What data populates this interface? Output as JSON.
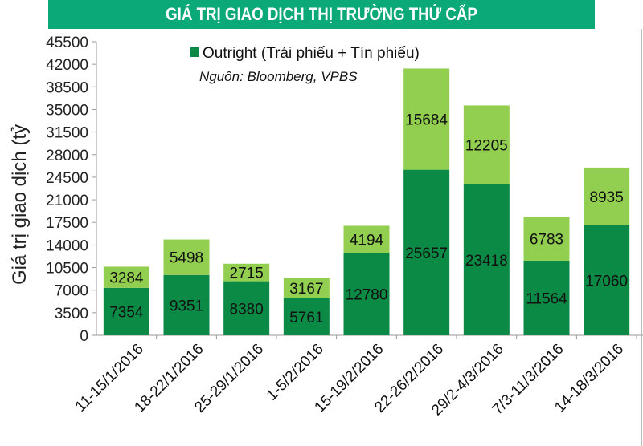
{
  "title": "GIÁ TRỊ GIAO DỊCH THỊ TRƯỜNG THỨ CẤP",
  "chart_data": {
    "type": "bar",
    "stacked": true,
    "title": "GIÁ TRỊ GIAO DỊCH THỊ TRƯỜNG THỨ CẤP",
    "ylabel": "Giá trị giao dịch (tỷ",
    "xlabel": "",
    "legend": "top-center",
    "source": "Nguồn: Bloomberg, VPBS",
    "ylim": [
      0,
      45500
    ],
    "yticks": [
      0,
      3500,
      7000,
      10500,
      14000,
      17500,
      21000,
      24500,
      28000,
      31500,
      35000,
      38500,
      42000,
      45500
    ],
    "categories": [
      "11-15/1/2016",
      "18-22/1/2016",
      "25-29/1/2016",
      "1-5/2/2016",
      "15-19/2/2016",
      "22-26/2/2016",
      "29/2-4/3/2016",
      "7/3-11/3/2016",
      "14-18/3/2016"
    ],
    "series": [
      {
        "name": "Outright (Trái phiếu + Tín phiếu)",
        "color": "#0b8a45",
        "values": [
          7354,
          9351,
          8380,
          5761,
          12780,
          25657,
          23418,
          11564,
          17060
        ]
      },
      {
        "color": "#92cf50",
        "values": [
          3284,
          5498,
          2715,
          3167,
          4194,
          15684,
          12205,
          6783,
          8935
        ]
      }
    ],
    "grid": false
  }
}
